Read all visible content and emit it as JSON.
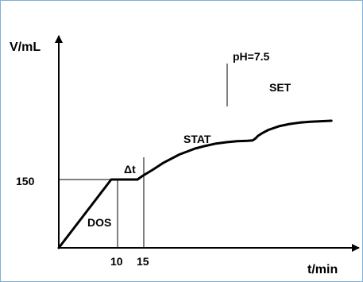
{
  "colors": {
    "background": "#ffffff",
    "border": "#7fb0d8",
    "ink": "#000000"
  },
  "chart_data": {
    "type": "line",
    "title": "",
    "ylabel": "V/mL",
    "xlabel": "t/min",
    "x_ticks": [
      "10",
      "15"
    ],
    "y_ticks": [
      "150"
    ],
    "series": [
      {
        "name": "",
        "x": [
          0,
          10,
          15,
          16,
          18,
          20,
          23,
          26,
          28,
          30,
          32,
          34,
          36,
          37,
          37.5,
          38,
          39,
          40,
          42,
          44,
          46,
          48,
          50,
          52
        ],
        "y": [
          0,
          150,
          150,
          158,
          172,
          187,
          205,
          218,
          224,
          229,
          232,
          234,
          235,
          236,
          240,
          246,
          253,
          259,
          267,
          272,
          275,
          277,
          278,
          279
        ]
      }
    ],
    "annotations": {
      "dos": "DOS",
      "delta_t": "Δt",
      "stat": "STAT",
      "ph": "pH=7.5",
      "set": "SET"
    }
  }
}
